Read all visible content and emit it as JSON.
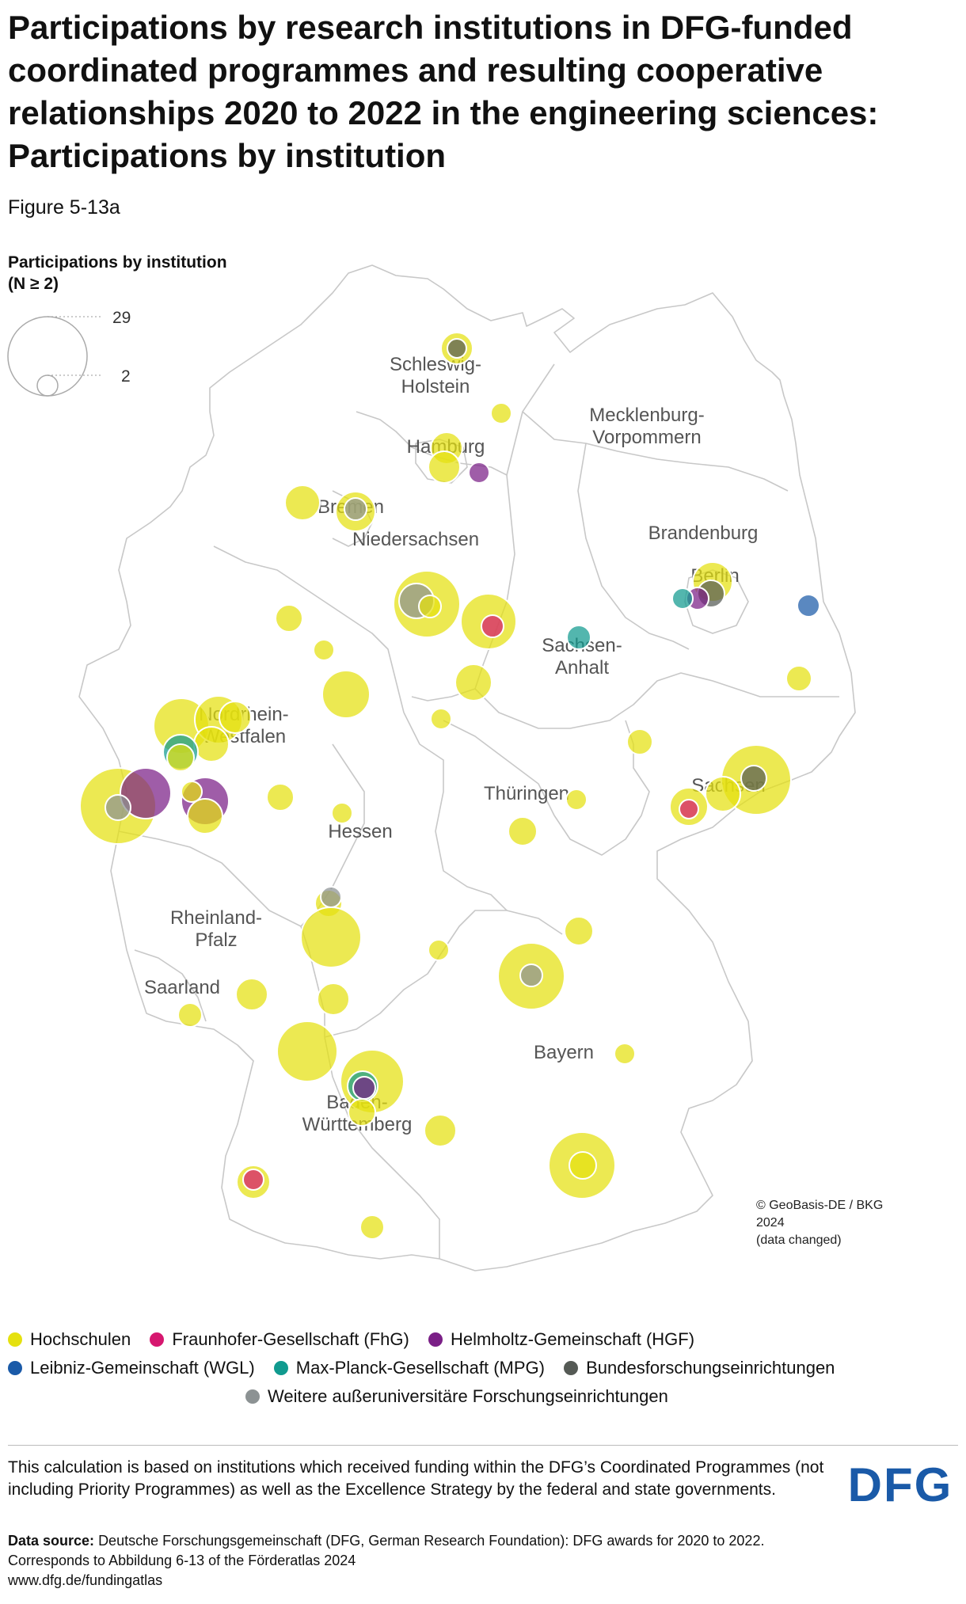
{
  "title": "Participations by research institutions in DFG-funded coordinated programmes and resulting cooperative relationships 2020 to 2022 in the engineering sciences: Participations by institution",
  "figure_label": "Figure 5-13a",
  "size_legend": {
    "title_line1": "Participations by institution",
    "title_line2": "(N ≥ 2)",
    "max_value": "29",
    "min_value": "2"
  },
  "map_credit": {
    "line1": "© GeoBasis-DE / BKG",
    "line2": "2024",
    "line3": "(data changed)"
  },
  "states": [
    {
      "name_line1": "Schleswig-",
      "name_line2": "Holstein"
    },
    {
      "name_line1": "Mecklenburg-",
      "name_line2": "Vorpommern"
    },
    {
      "name_line1": "Hamburg",
      "name_line2": ""
    },
    {
      "name_line1": "Bremen",
      "name_line2": ""
    },
    {
      "name_line1": "Niedersachsen",
      "name_line2": ""
    },
    {
      "name_line1": "Brandenburg",
      "name_line2": ""
    },
    {
      "name_line1": "Berlin",
      "name_line2": ""
    },
    {
      "name_line1": "Sachsen-",
      "name_line2": "Anhalt"
    },
    {
      "name_line1": "Nordrhein-",
      "name_line2": "Westfalen"
    },
    {
      "name_line1": "Sachsen",
      "name_line2": ""
    },
    {
      "name_line1": "Thüringen",
      "name_line2": ""
    },
    {
      "name_line1": "Hessen",
      "name_line2": ""
    },
    {
      "name_line1": "Rheinland-",
      "name_line2": "Pfalz"
    },
    {
      "name_line1": "Saarland",
      "name_line2": ""
    },
    {
      "name_line1": "Bayern",
      "name_line2": ""
    },
    {
      "name_line1": "Baden-",
      "name_line2": "Württemberg"
    }
  ],
  "legend": {
    "items": [
      {
        "label": "Hochschulen",
        "color": "#e5e10f"
      },
      {
        "label": "Fraunhofer-Gesellschaft (FhG)",
        "color": "#d6176f"
      },
      {
        "label": "Helmholtz-Gemeinschaft (HGF)",
        "color": "#7a1f86"
      },
      {
        "label": "Leibniz-Gemeinschaft (WGL)",
        "color": "#1a5aa8"
      },
      {
        "label": "Max-Planck-Gesellschaft (MPG)",
        "color": "#109a8f"
      },
      {
        "label": "Bundesforschungseinrichtungen",
        "color": "#555a55"
      },
      {
        "label": "Weitere außeruniversitäre Forschungseinrichtungen",
        "color": "#8c9293"
      }
    ]
  },
  "note": "This calculation is based on institutions which received funding within the DFG’s Coordinated Programmes (not including Priority Programmes) as well as the Excellence Strategy by the federal and state governments.",
  "source": {
    "label": "Data source:",
    "text": "Deutsche Forschungsgemeinschaft (DFG, German Research Foundation): DFG awards for 2020 to 2022. Corresponds to Abbildung 6-13 of the Förderatlas 2024",
    "url": "www.dfg.de/fundingatlas"
  },
  "logo_text": "DFG",
  "colors": {
    "hochschulen": "#e5e10f",
    "fhg": "#d6176f",
    "hgf": "#7a1f86",
    "wgl": "#1a5aa8",
    "mpg": "#109a8f",
    "bund": "#555a55",
    "weitere": "#8c9293",
    "border": "#c8c8c8",
    "logo": "#1a5aa8"
  }
}
